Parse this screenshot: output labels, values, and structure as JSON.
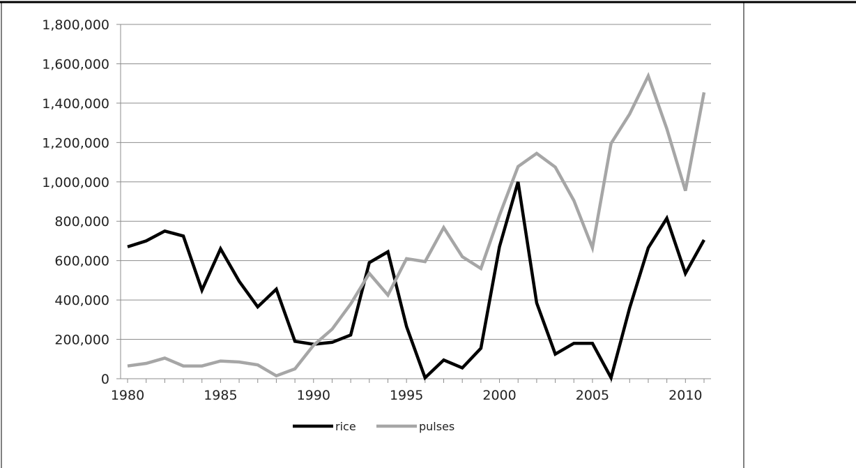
{
  "chart_data": {
    "type": "line",
    "title": "",
    "xlabel": "",
    "ylabel": "",
    "x": [
      1980,
      1981,
      1982,
      1983,
      1984,
      1985,
      1986,
      1987,
      1988,
      1989,
      1990,
      1991,
      1992,
      1993,
      1994,
      1995,
      1996,
      1997,
      1998,
      1999,
      2000,
      2001,
      2002,
      2003,
      2004,
      2005,
      2006,
      2007,
      2008,
      2009,
      2010,
      2011
    ],
    "xticks": [
      1980,
      1985,
      1990,
      1995,
      2000,
      2005,
      2010
    ],
    "xtick_labels": [
      "1980",
      "1985",
      "1990",
      "1995",
      "2000",
      "2005",
      "2010"
    ],
    "ylim": [
      0,
      1800000
    ],
    "yticks": [
      0,
      200000,
      400000,
      600000,
      800000,
      1000000,
      1200000,
      1400000,
      1600000,
      1800000
    ],
    "ytick_labels": [
      "0",
      "200,000",
      "400,000",
      "600,000",
      "800,000",
      "1,000,000",
      "1,200,000",
      "1,400,000",
      "1,600,000",
      "1,800,000"
    ],
    "grid": true,
    "legend_position": "bottom",
    "series": [
      {
        "name": "rice",
        "color": "#000000",
        "values": [
          670000,
          700000,
          750000,
          725000,
          450000,
          660000,
          495000,
          365000,
          455000,
          190000,
          175000,
          185000,
          222000,
          590000,
          645000,
          265000,
          5000,
          95000,
          55000,
          155000,
          670000,
          1000000,
          385000,
          125000,
          180000,
          180000,
          5000,
          360000,
          665000,
          815000,
          535000,
          705000
        ]
      },
      {
        "name": "pulses",
        "color": "#a6a6a6",
        "values": [
          65000,
          78000,
          105000,
          65000,
          65000,
          90000,
          85000,
          70000,
          15000,
          50000,
          170000,
          252000,
          380000,
          535000,
          425000,
          610000,
          595000,
          768000,
          620000,
          560000,
          830000,
          1078000,
          1145000,
          1075000,
          905000,
          665000,
          1195000,
          1345000,
          1538000,
          1270000,
          955000,
          1455000
        ]
      }
    ]
  }
}
